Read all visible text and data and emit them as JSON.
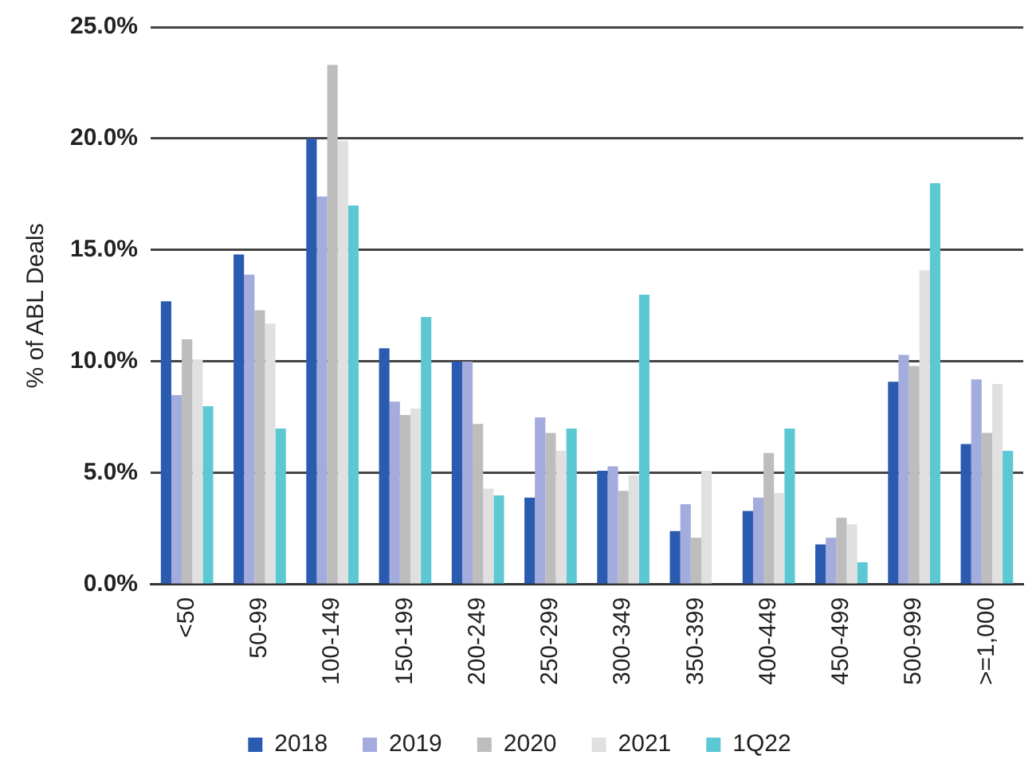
{
  "chart_data": {
    "type": "bar",
    "ylabel": "% of ABL Deals",
    "categories": [
      "<50",
      "50-99",
      "100-149",
      "150-199",
      "200-249",
      "250-299",
      "300-349",
      "350-399",
      "400-449",
      "450-499",
      "500-999",
      ">=1,000"
    ],
    "series": [
      {
        "name": "2018",
        "color": "#2b5bb0",
        "values": [
          12.7,
          14.8,
          20.0,
          10.6,
          10.0,
          3.9,
          5.1,
          2.4,
          3.3,
          1.8,
          9.1,
          6.3
        ]
      },
      {
        "name": "2019",
        "color": "#a3acdc",
        "values": [
          8.5,
          13.9,
          17.4,
          8.2,
          10.0,
          7.5,
          5.3,
          3.6,
          3.9,
          2.1,
          10.3,
          9.2
        ]
      },
      {
        "name": "2020",
        "color": "#bdbdbd",
        "values": [
          11.0,
          12.3,
          23.3,
          7.6,
          7.2,
          6.8,
          4.2,
          2.1,
          5.9,
          3.0,
          9.8,
          6.8
        ]
      },
      {
        "name": "2021",
        "color": "#e0e0e0",
        "values": [
          10.1,
          11.7,
          19.9,
          7.9,
          4.3,
          6.0,
          4.9,
          5.1,
          4.1,
          2.7,
          14.1,
          9.0
        ]
      },
      {
        "name": "1Q22",
        "color": "#5bc8d4",
        "values": [
          8.0,
          7.0,
          17.0,
          12.0,
          4.0,
          7.0,
          13.0,
          0,
          7.0,
          1.0,
          18.0,
          6.0
        ]
      }
    ],
    "ylim": [
      0,
      25
    ],
    "yticks": [
      {
        "value": 0,
        "label": "0.0%"
      },
      {
        "value": 5,
        "label": "5.0%"
      },
      {
        "value": 10,
        "label": "10.0%"
      },
      {
        "value": 15,
        "label": "15.0%"
      },
      {
        "value": 20,
        "label": "20.0%"
      },
      {
        "value": 25,
        "label": "25.0%"
      }
    ],
    "grid": "y",
    "legend": "bottom"
  }
}
